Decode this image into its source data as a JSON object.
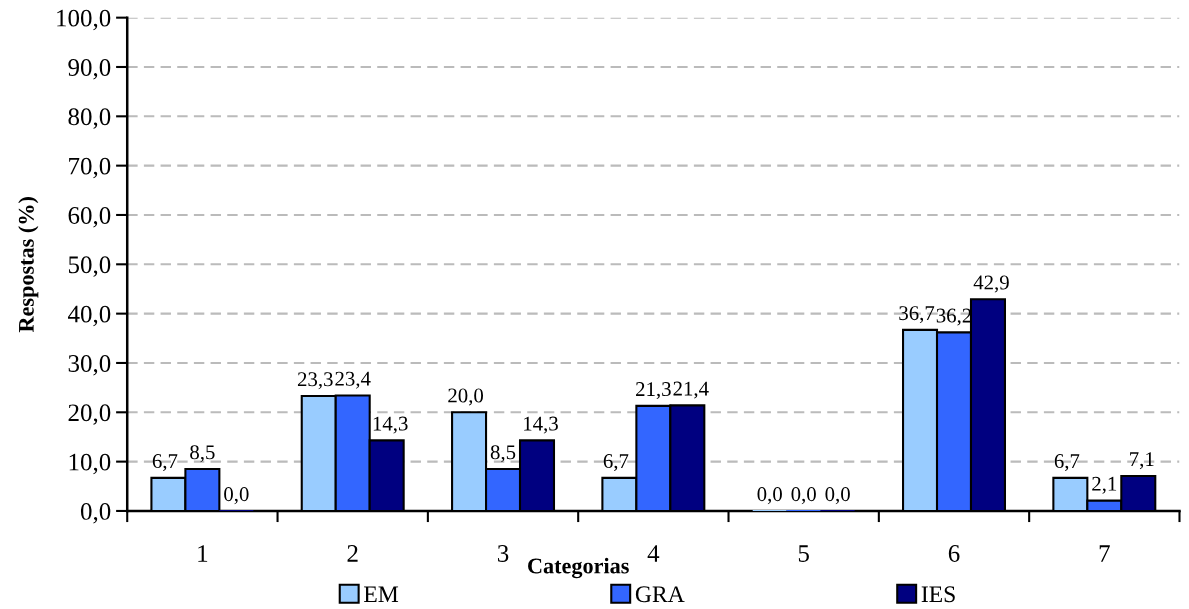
{
  "chart_data": {
    "type": "bar",
    "xlabel": "Categorias",
    "ylabel": "Respostas (%)",
    "categories": [
      "1",
      "2",
      "3",
      "4",
      "5",
      "6",
      "7"
    ],
    "series": [
      {
        "name": "EM",
        "color": "#99ccff",
        "values": [
          6.7,
          23.3,
          20.0,
          6.7,
          0.0,
          36.7,
          6.7
        ],
        "value_labels": [
          "6,7",
          "23,3",
          "20,0",
          "6,7",
          "0,0",
          "36,7",
          "6,7"
        ]
      },
      {
        "name": "GRA",
        "color": "#3366ff",
        "values": [
          8.5,
          23.4,
          8.5,
          21.3,
          0.0,
          36.2,
          2.1
        ],
        "value_labels": [
          "8,5",
          "23,4",
          "8,5",
          "21,3",
          "0,0",
          "36,2",
          "2,1"
        ]
      },
      {
        "name": "IES",
        "color": "#000080",
        "values": [
          0.0,
          14.3,
          14.3,
          21.4,
          0.0,
          42.9,
          7.1
        ],
        "value_labels": [
          "0,0",
          "14,3",
          "14,3",
          "21,4",
          "0,0",
          "42,9",
          "7,1"
        ]
      }
    ],
    "ylim": [
      0,
      100
    ],
    "yticks": [
      {
        "value": 0,
        "label": "0,0"
      },
      {
        "value": 10,
        "label": "10,0"
      },
      {
        "value": 20,
        "label": "20,0"
      },
      {
        "value": 30,
        "label": "30,0"
      },
      {
        "value": 40,
        "label": "40,0"
      },
      {
        "value": 50,
        "label": "50,0"
      },
      {
        "value": 60,
        "label": "60,0"
      },
      {
        "value": 70,
        "label": "70,0"
      },
      {
        "value": 80,
        "label": "80,0"
      },
      {
        "value": 90,
        "label": "90,0"
      },
      {
        "value": 100,
        "label": "100,0"
      }
    ],
    "grid": "y",
    "legend": "bottom"
  }
}
